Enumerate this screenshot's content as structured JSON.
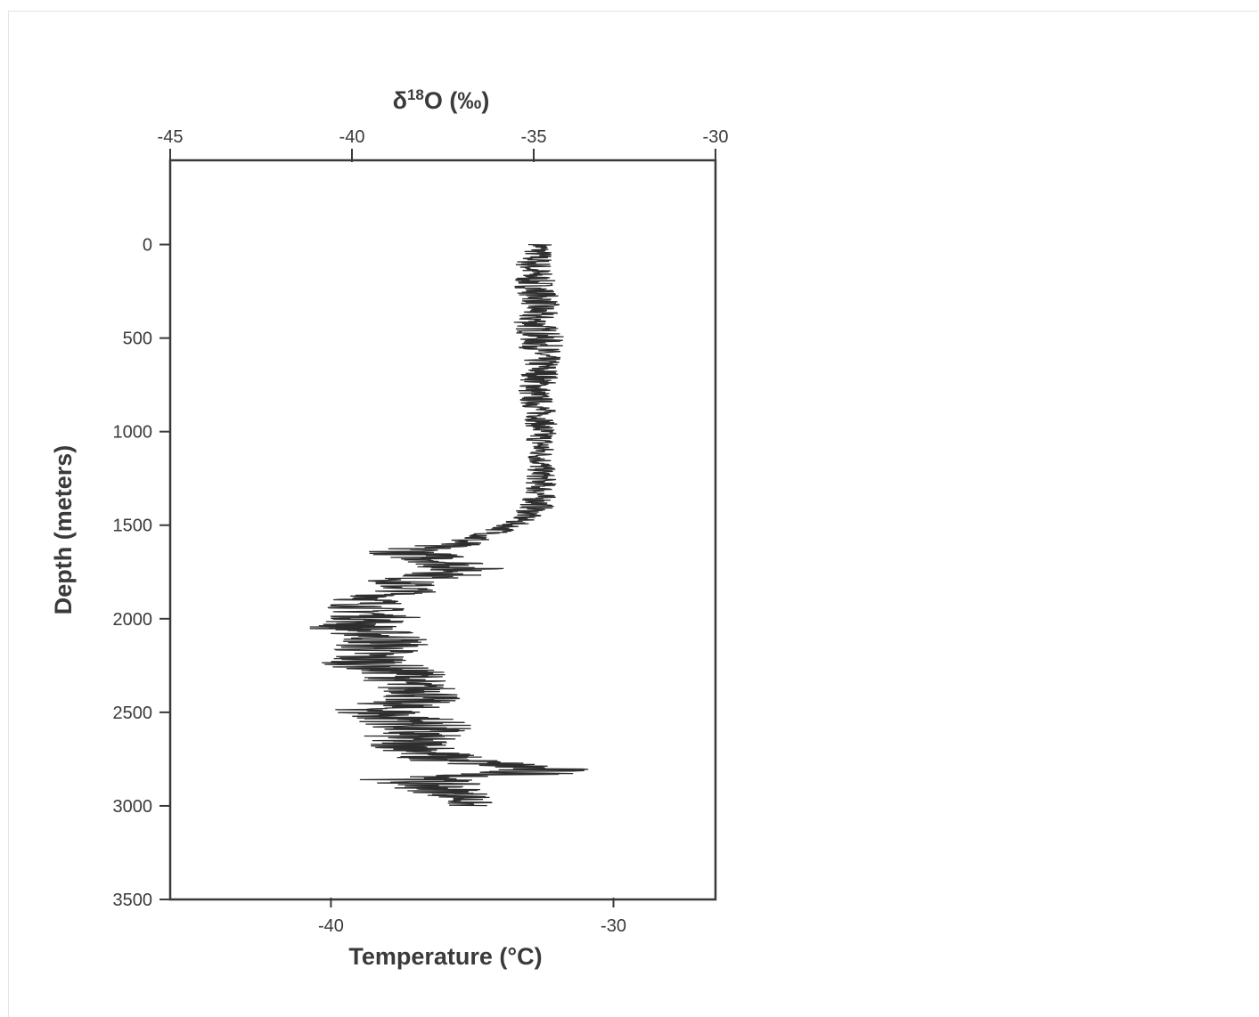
{
  "chart_data": {
    "type": "line",
    "orientation": "vertical-profile",
    "top_axis": {
      "label_prefix": "δ",
      "label_superscript": "18",
      "label_suffix": "O (‰)",
      "range": [
        -45,
        -30
      ],
      "ticks": [
        "-45",
        "-40",
        "-35",
        "-30"
      ]
    },
    "bottom_axis": {
      "label": "Temperature (°C)",
      "range": [
        -45.5,
        -26.2
      ],
      "ticks": [
        "-40",
        "-30"
      ],
      "tick_values": [
        -40,
        -30
      ]
    },
    "y_axis": {
      "label": "Depth (meters)",
      "range": [
        -450,
        3500
      ],
      "inverted": true,
      "ticks": [
        "0",
        "500",
        "1000",
        "1500",
        "2000",
        "2500",
        "3000",
        "3500"
      ],
      "tick_values": [
        0,
        500,
        1000,
        1500,
        2000,
        2500,
        3000,
        3500
      ]
    },
    "grid": false,
    "legend": "none",
    "series": [
      {
        "color": "#2e2e2e",
        "depth": [
          0,
          100,
          200,
          300,
          400,
          500,
          600,
          700,
          800,
          900,
          1000,
          1100,
          1200,
          1300,
          1400,
          1450,
          1500,
          1550,
          1600,
          1620,
          1650,
          1700,
          1750,
          1800,
          1850,
          1900,
          1950,
          2000,
          2050,
          2100,
          2150,
          2200,
          2250,
          2300,
          2350,
          2400,
          2450,
          2500,
          2550,
          2600,
          2650,
          2700,
          2750,
          2800,
          2830,
          2860,
          2900,
          2950,
          3000
        ],
        "d18O": [
          -34.8,
          -35.0,
          -35.0,
          -34.8,
          -35.0,
          -34.8,
          -34.8,
          -34.8,
          -35.0,
          -34.8,
          -34.8,
          -34.8,
          -34.8,
          -34.8,
          -34.9,
          -35.2,
          -35.6,
          -36.2,
          -37.2,
          -38.2,
          -38.4,
          -37.2,
          -36.9,
          -38.7,
          -38.4,
          -39.5,
          -39.6,
          -39.3,
          -40.0,
          -39.0,
          -39.2,
          -39.6,
          -39.4,
          -38.4,
          -38.6,
          -37.8,
          -38.6,
          -39.3,
          -38.2,
          -38.2,
          -38.6,
          -38.0,
          -37.6,
          -34.9,
          -35.4,
          -38.2,
          -37.7,
          -36.9,
          -36.8
        ],
        "amplitude": [
          0.35,
          0.55,
          0.6,
          0.55,
          0.6,
          0.65,
          0.55,
          0.55,
          0.5,
          0.45,
          0.45,
          0.4,
          0.4,
          0.45,
          0.5,
          0.4,
          0.4,
          0.5,
          0.9,
          1.2,
          1.2,
          1.2,
          1.3,
          1.0,
          0.9,
          1.1,
          1.1,
          1.3,
          1.3,
          1.3,
          1.4,
          1.3,
          1.4,
          1.2,
          1.2,
          1.2,
          1.3,
          1.5,
          1.6,
          1.5,
          1.4,
          1.2,
          1.4,
          1.6,
          1.7,
          1.6,
          1.3,
          0.9,
          0.6
        ]
      }
    ]
  }
}
